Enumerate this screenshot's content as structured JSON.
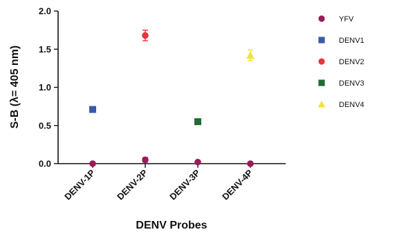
{
  "chart_data": {
    "type": "scatter",
    "categories": [
      "DENV-1P",
      "DENV-2P",
      "DENV-3P",
      "DENV-4P"
    ],
    "xlabel": "DENV Probes",
    "ylabel": "S-B (λ= 405 nm)",
    "ylim": [
      0,
      2.0
    ],
    "yticks": [
      "0.0",
      "0.5",
      "1.0",
      "1.5",
      "2.0"
    ],
    "grid": false,
    "legend_position": "right",
    "series": [
      {
        "name": "YFV",
        "marker": "circle",
        "color": "#9b1b5a",
        "points": [
          {
            "x": "DENV-1P",
            "y": 0.0,
            "err": 0
          },
          {
            "x": "DENV-2P",
            "y": 0.05,
            "err": 0.03
          },
          {
            "x": "DENV-3P",
            "y": 0.02,
            "err": 0
          },
          {
            "x": "DENV-4P",
            "y": 0.0,
            "err": 0
          }
        ]
      },
      {
        "name": "DENV1",
        "marker": "square",
        "color": "#3a5aa8",
        "points": [
          {
            "x": "DENV-1P",
            "y": 0.71,
            "err": 0
          }
        ]
      },
      {
        "name": "DENV2",
        "marker": "circle",
        "color": "#e8353b",
        "points": [
          {
            "x": "DENV-2P",
            "y": 1.68,
            "err": 0.07
          }
        ]
      },
      {
        "name": "DENV3",
        "marker": "square",
        "color": "#1f6b33",
        "points": [
          {
            "x": "DENV-3P",
            "y": 0.55,
            "err": 0
          }
        ]
      },
      {
        "name": "DENV4",
        "marker": "triangle",
        "color": "#f2e23a",
        "points": [
          {
            "x": "DENV-4P",
            "y": 1.42,
            "err": 0.07
          }
        ]
      }
    ]
  }
}
